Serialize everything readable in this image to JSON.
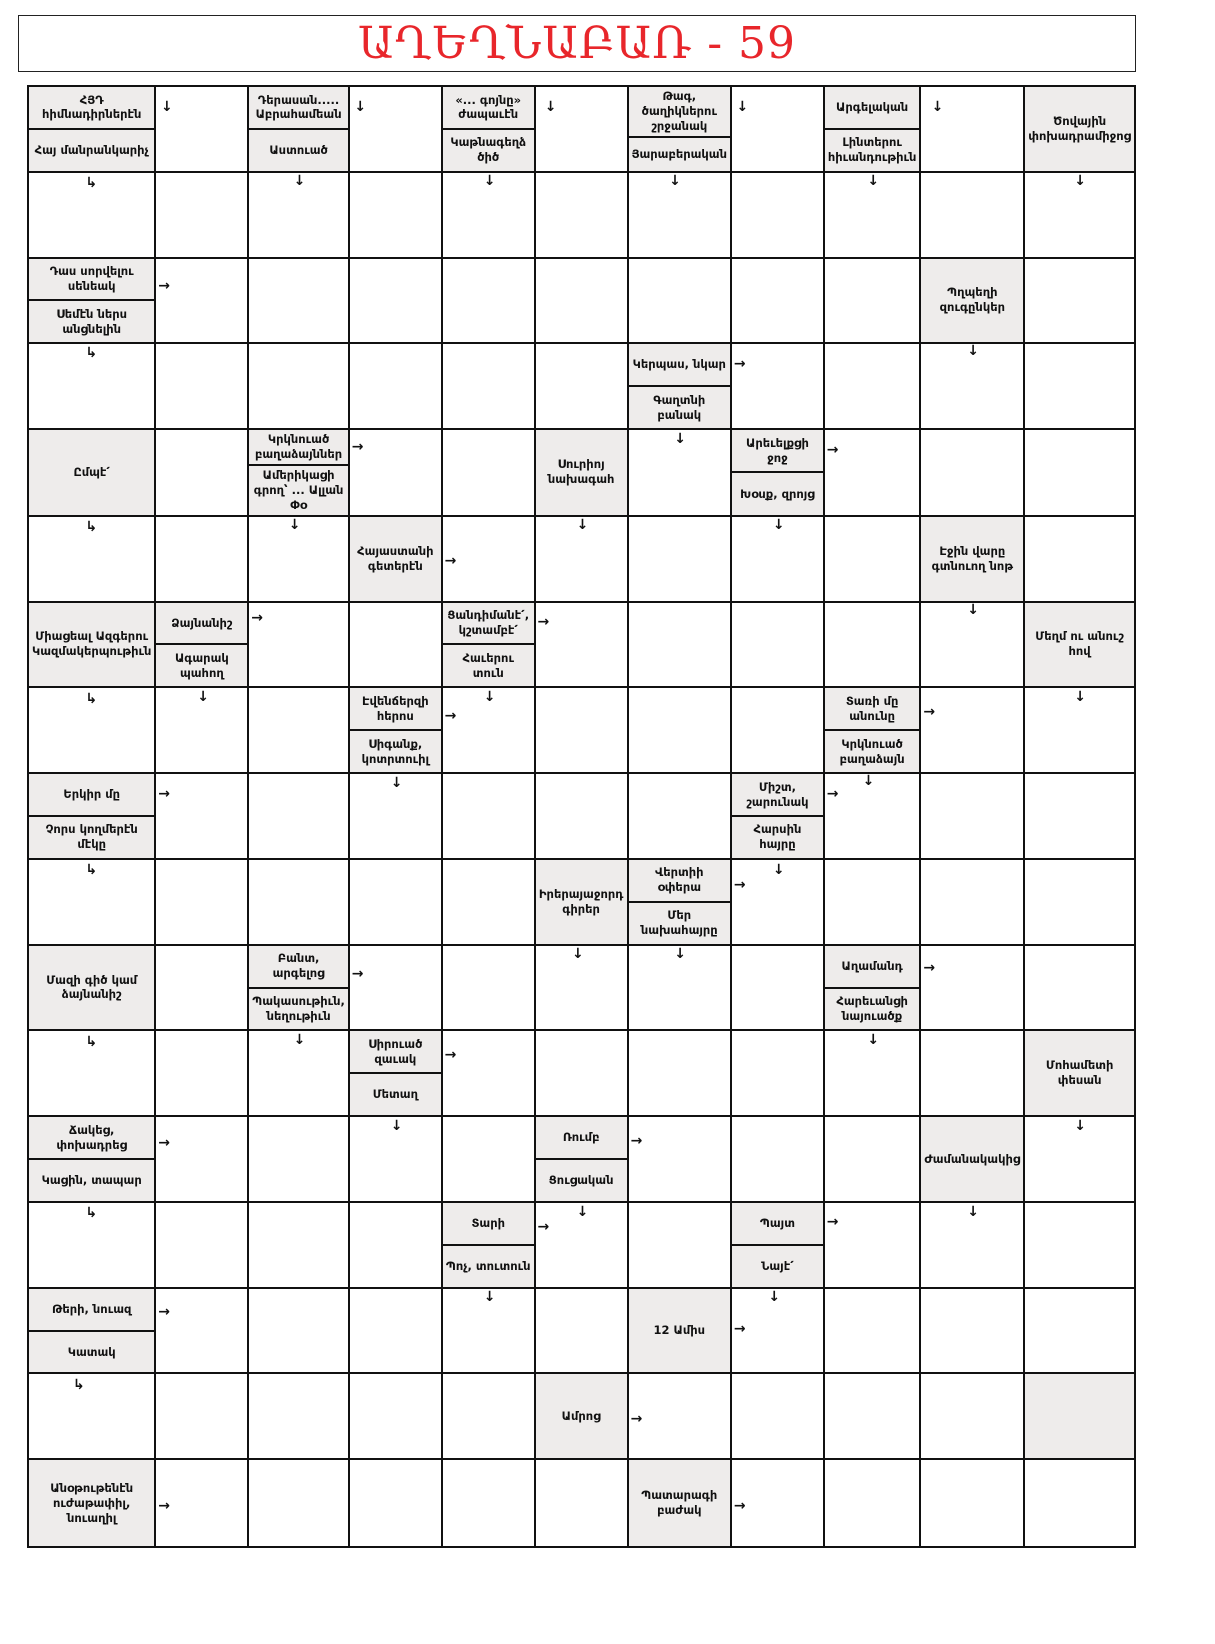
{
  "title": "ԱՂԵՂՆԱԲԱՌ - 59",
  "colors": {
    "title": "#e8262b",
    "clue_cell": "#eeeceb",
    "grid_line": "#111111"
  },
  "grid": {
    "rows": [
      [
        [
          "ՀՅԴ հիմնադիրներէն",
          "Հայ մանրանկարիչ"
        ],
        null,
        [
          "Դերասան..... Աբրահամեան",
          "Աստուած"
        ],
        null,
        [
          "«... գոյնը» ժապաւէն",
          "Կաթնագեղձ ծիծ"
        ],
        null,
        [
          "Թագ, ծաղիկներու շրջանակ",
          "Յարաբերական"
        ],
        null,
        [
          "Արգելական",
          "Լինտերու հիւանդութիւն"
        ],
        null,
        [
          "Ծովային փոխադրամիջոց"
        ]
      ],
      [
        null,
        null,
        null,
        null,
        null,
        null,
        null,
        null,
        null,
        null,
        null
      ],
      [
        [
          "Դաս սորվելու սենեակ",
          "Սեմէն ներս անցնելին"
        ],
        null,
        null,
        null,
        null,
        null,
        null,
        null,
        null,
        [
          "Պղպեղի զուգընկեր"
        ],
        null
      ],
      [
        null,
        null,
        null,
        null,
        null,
        null,
        [
          "Կերպաս, նկար",
          "Գաղտնի բանակ"
        ],
        null,
        null,
        null,
        null
      ],
      [
        [
          "Ըմպէ՛"
        ],
        null,
        [
          "Կրկնուած բաղաձայններ",
          "Ամերիկացի գրող՝ ... Ալլան Փօ"
        ],
        null,
        null,
        [
          "Սուրիոյ նախագահ"
        ],
        null,
        [
          "Արեւելքցի ջոջ",
          "Խօսք, զրոյց"
        ],
        null,
        null,
        null
      ],
      [
        null,
        null,
        null,
        [
          "Հայաստանի գետերէն"
        ],
        null,
        null,
        null,
        null,
        null,
        [
          "Էջին վարը գտնուող նոթ"
        ],
        null
      ],
      [
        [
          "Միացեալ Ազգերու Կազմակերպութիւն"
        ],
        [
          "Ձայնանիշ",
          "Ագարակ պահող"
        ],
        null,
        null,
        [
          "Ցանդիմանէ՛, կշտամբէ՛",
          "Հաւերու տուն"
        ],
        null,
        null,
        null,
        null,
        null,
        [
          "Մեղմ ու անուշ հով"
        ]
      ],
      [
        null,
        null,
        null,
        [
          "Էվենճերզի հերոս",
          "Սիգանք, կոտրտուիլ"
        ],
        null,
        null,
        null,
        null,
        [
          "Տառի մը անունը",
          "Կրկնուած բաղաձայն"
        ],
        null,
        null
      ],
      [
        [
          "Երկիր մը",
          "Չորս կողմերէն մէկը"
        ],
        null,
        null,
        null,
        null,
        null,
        null,
        [
          "Միշտ, շարունակ",
          "Հարսին հայրը"
        ],
        null,
        null,
        null
      ],
      [
        null,
        null,
        null,
        null,
        null,
        [
          "Իրերայաջորդ գիրեր"
        ],
        [
          "Վերտիի օփերա",
          "Մեր նախահայրը"
        ],
        null,
        null,
        null,
        null
      ],
      [
        [
          "Մազի գիծ կամ ձայնանիշ"
        ],
        null,
        [
          "Բանտ, արգելոց",
          "Պակասութիւն, նեղութիւն"
        ],
        null,
        null,
        null,
        null,
        null,
        [
          "Աղամանդ",
          "Հարեւանցի նայուածք"
        ],
        null,
        null
      ],
      [
        null,
        null,
        null,
        [
          "Սիրուած զաւակ",
          "Մետաղ"
        ],
        null,
        null,
        null,
        null,
        null,
        null,
        [
          "Մոհամետի փեսան"
        ]
      ],
      [
        [
          "Ճակեց, փոխադրեց",
          "Կացին, տապար"
        ],
        null,
        null,
        null,
        null,
        [
          "Ռումբ",
          "Ցուցական"
        ],
        null,
        null,
        null,
        [
          "Ժամանակակից"
        ],
        null
      ],
      [
        null,
        null,
        null,
        null,
        [
          "Տարի",
          "Պոչ, տուտուն"
        ],
        null,
        null,
        [
          "Պայտ",
          "Նայէ՛"
        ],
        null,
        null,
        null
      ],
      [
        [
          "Թերի, նուազ",
          "Կատակ"
        ],
        null,
        null,
        null,
        null,
        null,
        [
          "12 Ամիս"
        ],
        null,
        null,
        null,
        null
      ],
      [
        null,
        null,
        null,
        null,
        null,
        [
          "Ամրոց"
        ],
        null,
        null,
        null,
        null,
        []
      ],
      [
        [
          "Անօթութենէն ուժաթափիլ, նուաղիլ"
        ],
        null,
        null,
        null,
        null,
        null,
        [
          "Պատարագի բաժակ"
        ],
        null,
        null,
        null,
        null
      ]
    ]
  }
}
